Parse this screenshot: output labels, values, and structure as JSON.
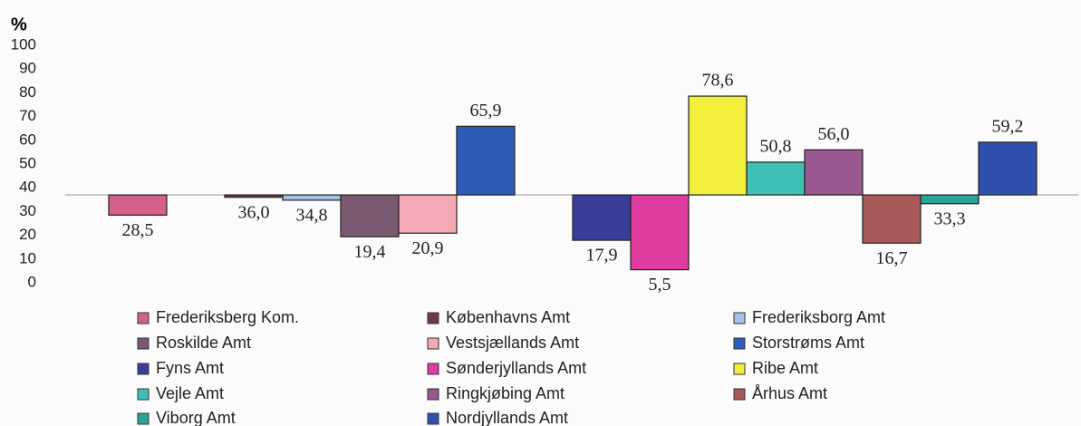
{
  "chart_data": {
    "type": "bar",
    "ylabel": "%",
    "categories": [
      "Frederiksberg Kom.",
      "Københavns Amt",
      "Frederiksborg Amt",
      "Roskilde Amt",
      "Vestsjællands Amt",
      "Storstrøms Amt",
      "Fyns Amt",
      "Sønderjyllands Amt",
      "Ribe Amt",
      "Vejle Amt",
      "Ringkjøbing Amt",
      "Århus Amt",
      "Viborg Amt",
      "Nordjyllands Amt"
    ],
    "values": [
      28.5,
      36.0,
      34.8,
      19.4,
      20.9,
      65.9,
      17.9,
      5.5,
      78.6,
      50.8,
      56.0,
      16.7,
      33.3,
      59.2
    ],
    "value_labels": [
      "28,5",
      "36,0",
      "34,8",
      "19,4",
      "20,9",
      "65,9",
      "17,9",
      "5,5",
      "78,6",
      "50,8",
      "56,0",
      "16,7",
      "33,3",
      "59,2"
    ],
    "colors": [
      "#d4608c",
      "#6a3a46",
      "#a8c0e8",
      "#7a5a72",
      "#f4aab4",
      "#2e5cb8",
      "#3a3e98",
      "#e03ca0",
      "#f2ee3c",
      "#3ec0b4",
      "#9a5890",
      "#a85a5a",
      "#2aa49a",
      "#3050b0"
    ],
    "baseline": 37,
    "ylim": [
      0,
      100
    ],
    "yticks": [
      0,
      10,
      20,
      30,
      40,
      50,
      60,
      70,
      80,
      90,
      100
    ]
  }
}
